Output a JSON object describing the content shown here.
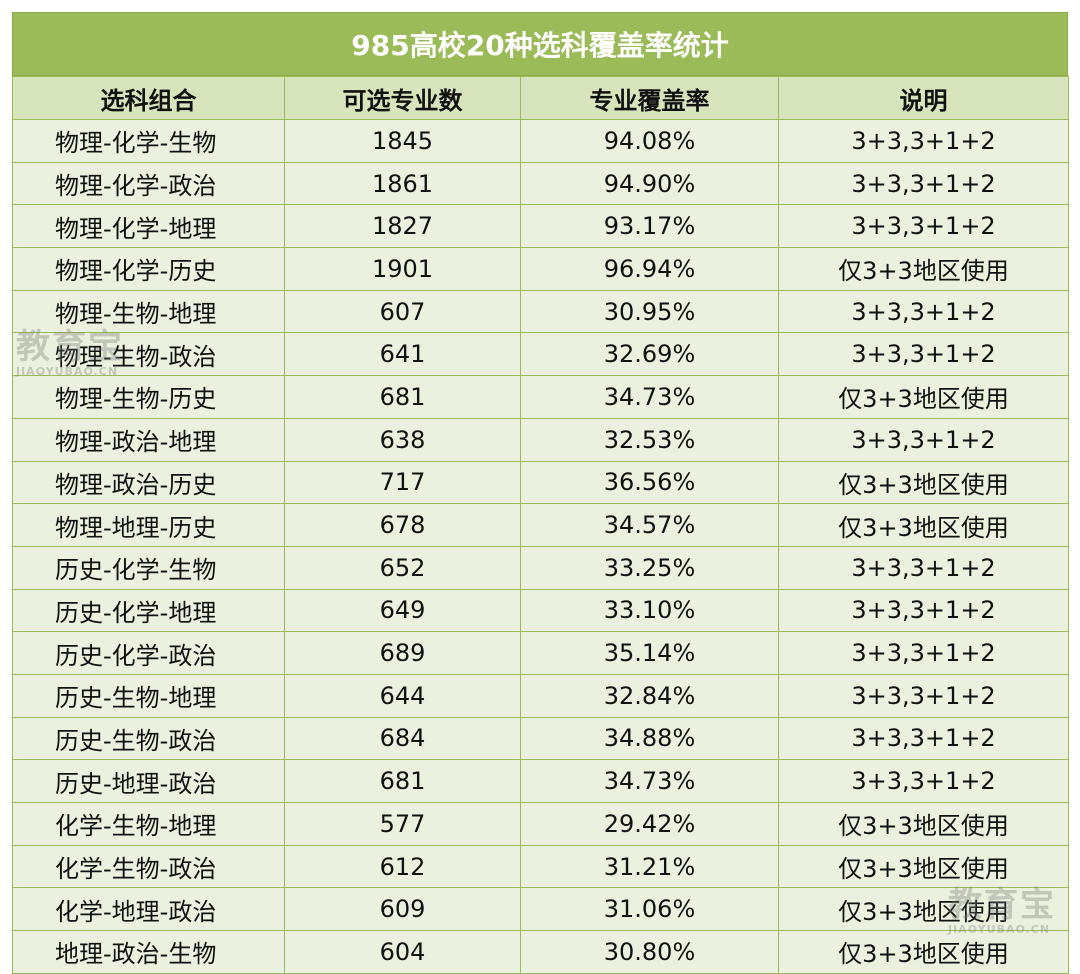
{
  "title": "985高校20种选科覆盖率统计",
  "headers": [
    "选科组合",
    "可选专业数",
    "专业覆盖率",
    "说明"
  ],
  "rows": [
    {
      "combo": "物理-化学-生物",
      "count": "1845",
      "rate": "94.08%",
      "note": "3+3,3+1+2"
    },
    {
      "combo": "物理-化学-政治",
      "count": "1861",
      "rate": "94.90%",
      "note": "3+3,3+1+2"
    },
    {
      "combo": "物理-化学-地理",
      "count": "1827",
      "rate": "93.17%",
      "note": "3+3,3+1+2"
    },
    {
      "combo": "物理-化学-历史",
      "count": "1901",
      "rate": "96.94%",
      "note": "仅3+3地区使用"
    },
    {
      "combo": "物理-生物-地理",
      "count": "607",
      "rate": "30.95%",
      "note": "3+3,3+1+2"
    },
    {
      "combo": "物理-生物-政治",
      "count": "641",
      "rate": "32.69%",
      "note": "3+3,3+1+2"
    },
    {
      "combo": "物理-生物-历史",
      "count": "681",
      "rate": "34.73%",
      "note": "仅3+3地区使用"
    },
    {
      "combo": "物理-政治-地理",
      "count": "638",
      "rate": "32.53%",
      "note": "3+3,3+1+2"
    },
    {
      "combo": "物理-政治-历史",
      "count": "717",
      "rate": "36.56%",
      "note": "仅3+3地区使用"
    },
    {
      "combo": "物理-地理-历史",
      "count": "678",
      "rate": "34.57%",
      "note": "仅3+3地区使用"
    },
    {
      "combo": "历史-化学-生物",
      "count": "652",
      "rate": "33.25%",
      "note": "3+3,3+1+2"
    },
    {
      "combo": "历史-化学-地理",
      "count": "649",
      "rate": "33.10%",
      "note": "3+3,3+1+2"
    },
    {
      "combo": "历史-化学-政治",
      "count": "689",
      "rate": "35.14%",
      "note": "3+3,3+1+2"
    },
    {
      "combo": "历史-生物-地理",
      "count": "644",
      "rate": "32.84%",
      "note": "3+3,3+1+2"
    },
    {
      "combo": "历史-生物-政治",
      "count": "684",
      "rate": "34.88%",
      "note": "3+3,3+1+2"
    },
    {
      "combo": "历史-地理-政治",
      "count": "681",
      "rate": "34.73%",
      "note": "3+3,3+1+2"
    },
    {
      "combo": "化学-生物-地理",
      "count": "577",
      "rate": "29.42%",
      "note": "仅3+3地区使用"
    },
    {
      "combo": "化学-生物-政治",
      "count": "612",
      "rate": "31.21%",
      "note": "仅3+3地区使用"
    },
    {
      "combo": "化学-地理-政治",
      "count": "609",
      "rate": "31.06%",
      "note": "仅3+3地区使用"
    },
    {
      "combo": "地理-政治-生物",
      "count": "604",
      "rate": "30.80%",
      "note": "仅3+3地区使用"
    }
  ],
  "watermarks": [
    {
      "text": "教育宝",
      "sub": "JIAOYUBAO.CN"
    },
    {
      "text": "教育宝",
      "sub": "JIAOYUBAO.CN"
    }
  ]
}
